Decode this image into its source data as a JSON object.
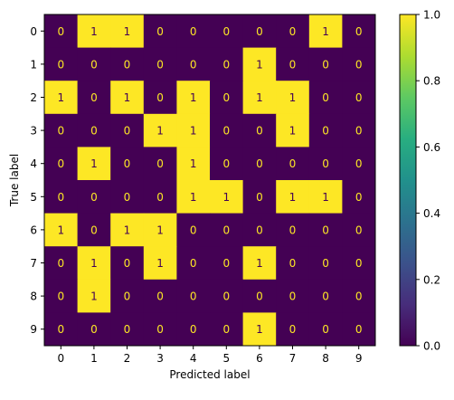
{
  "chart_data": {
    "type": "heatmap",
    "title": "",
    "xlabel": "Predicted label",
    "ylabel": "True label",
    "x_ticks": [
      "0",
      "1",
      "2",
      "3",
      "4",
      "5",
      "6",
      "7",
      "8",
      "9"
    ],
    "y_ticks": [
      "0",
      "1",
      "2",
      "3",
      "4",
      "5",
      "6",
      "7",
      "8",
      "9"
    ],
    "matrix": [
      [
        0,
        1,
        1,
        0,
        0,
        0,
        0,
        0,
        1,
        0
      ],
      [
        0,
        0,
        0,
        0,
        0,
        0,
        1,
        0,
        0,
        0
      ],
      [
        1,
        0,
        1,
        0,
        1,
        0,
        1,
        1,
        0,
        0
      ],
      [
        0,
        0,
        0,
        1,
        1,
        0,
        0,
        1,
        0,
        0
      ],
      [
        0,
        1,
        0,
        0,
        1,
        0,
        0,
        0,
        0,
        0
      ],
      [
        0,
        0,
        0,
        0,
        1,
        1,
        0,
        1,
        1,
        0
      ],
      [
        1,
        0,
        1,
        1,
        0,
        0,
        0,
        0,
        0,
        0
      ],
      [
        0,
        1,
        0,
        1,
        0,
        0,
        1,
        0,
        0,
        0
      ],
      [
        0,
        1,
        0,
        0,
        0,
        0,
        0,
        0,
        0,
        0
      ],
      [
        0,
        0,
        0,
        0,
        0,
        0,
        1,
        0,
        0,
        0
      ]
    ],
    "colorbar": {
      "range": [
        0.0,
        1.0
      ],
      "ticks": [
        "0.0",
        "0.2",
        "0.4",
        "0.6",
        "0.8",
        "1.0"
      ]
    },
    "colors": {
      "low": "#440154",
      "high": "#fde725",
      "text_on_low": "#fde725",
      "text_on_high": "#440154"
    }
  }
}
